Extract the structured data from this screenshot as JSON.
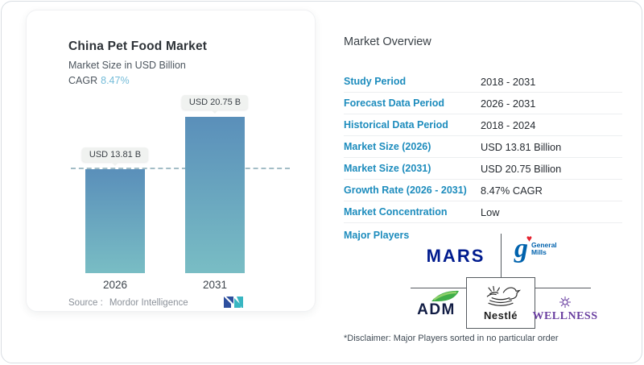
{
  "chart_card": {
    "title": "China Pet Food Market",
    "subtitle": "Market Size in USD Billion",
    "cagr_label": "CAGR",
    "cagr_value": "8.47%",
    "source_label": "Source :",
    "source_value": "Mordor Intelligence"
  },
  "chart_data": {
    "type": "bar",
    "title": "China Pet Food Market",
    "ylabel": "Market Size in USD Billion",
    "categories": [
      "2026",
      "2031"
    ],
    "values": [
      13.81,
      20.75
    ],
    "value_labels": [
      "USD 13.81 B",
      "USD 20.75 B"
    ],
    "unit": "USD Billion",
    "cagr_percent": 8.47,
    "dashed_reference_value": 13.81,
    "grid": false,
    "legend": false,
    "bar_gradient": [
      "#5a8fba",
      "#79bdc4"
    ],
    "dashed_line_color": "#a3bdc6"
  },
  "overview": {
    "title": "Market Overview",
    "rows": [
      {
        "label": "Study Period",
        "value": "2018 - 2031"
      },
      {
        "label": "Forecast Data Period",
        "value": "2026 - 2031"
      },
      {
        "label": "Historical Data Period",
        "value": "2018 - 2024"
      },
      {
        "label": "Market Size (2026)",
        "value": "USD 13.81 Billion"
      },
      {
        "label": "Market Size (2031)",
        "value": "USD 20.75 Billion"
      },
      {
        "label": "Growth Rate (2026 - 2031)",
        "value": "8.47% CAGR"
      },
      {
        "label": "Market Concentration",
        "value": "Low"
      }
    ],
    "major_players_label": "Major Players",
    "players": {
      "mars": "MARS",
      "general_mills_line1": "General",
      "general_mills_line2": "Mills",
      "general_mills_g": "g",
      "adm": "ADM",
      "nestle": "Nestlé",
      "wellness": "WELLNESS"
    },
    "disclaimer": "*Disclaimer: Major Players sorted in no particular order"
  },
  "colors": {
    "table_label_blue": "#1d8cbd",
    "cagr_light_blue": "#74bcd9",
    "bar_top": "#5a8fba",
    "bar_bottom": "#79bdc4",
    "mars_blue": "#001b8e",
    "general_mills_blue": "#0062ad",
    "general_mills_heart_red": "#e52330",
    "adm_navy": "#111c44",
    "adm_green": "#3fae49",
    "nestle_dark": "#1f1f1f",
    "wellness_purple": "#6a3fa0",
    "mordor_navy": "#2d4f9e",
    "mordor_teal": "#38b6c2"
  }
}
